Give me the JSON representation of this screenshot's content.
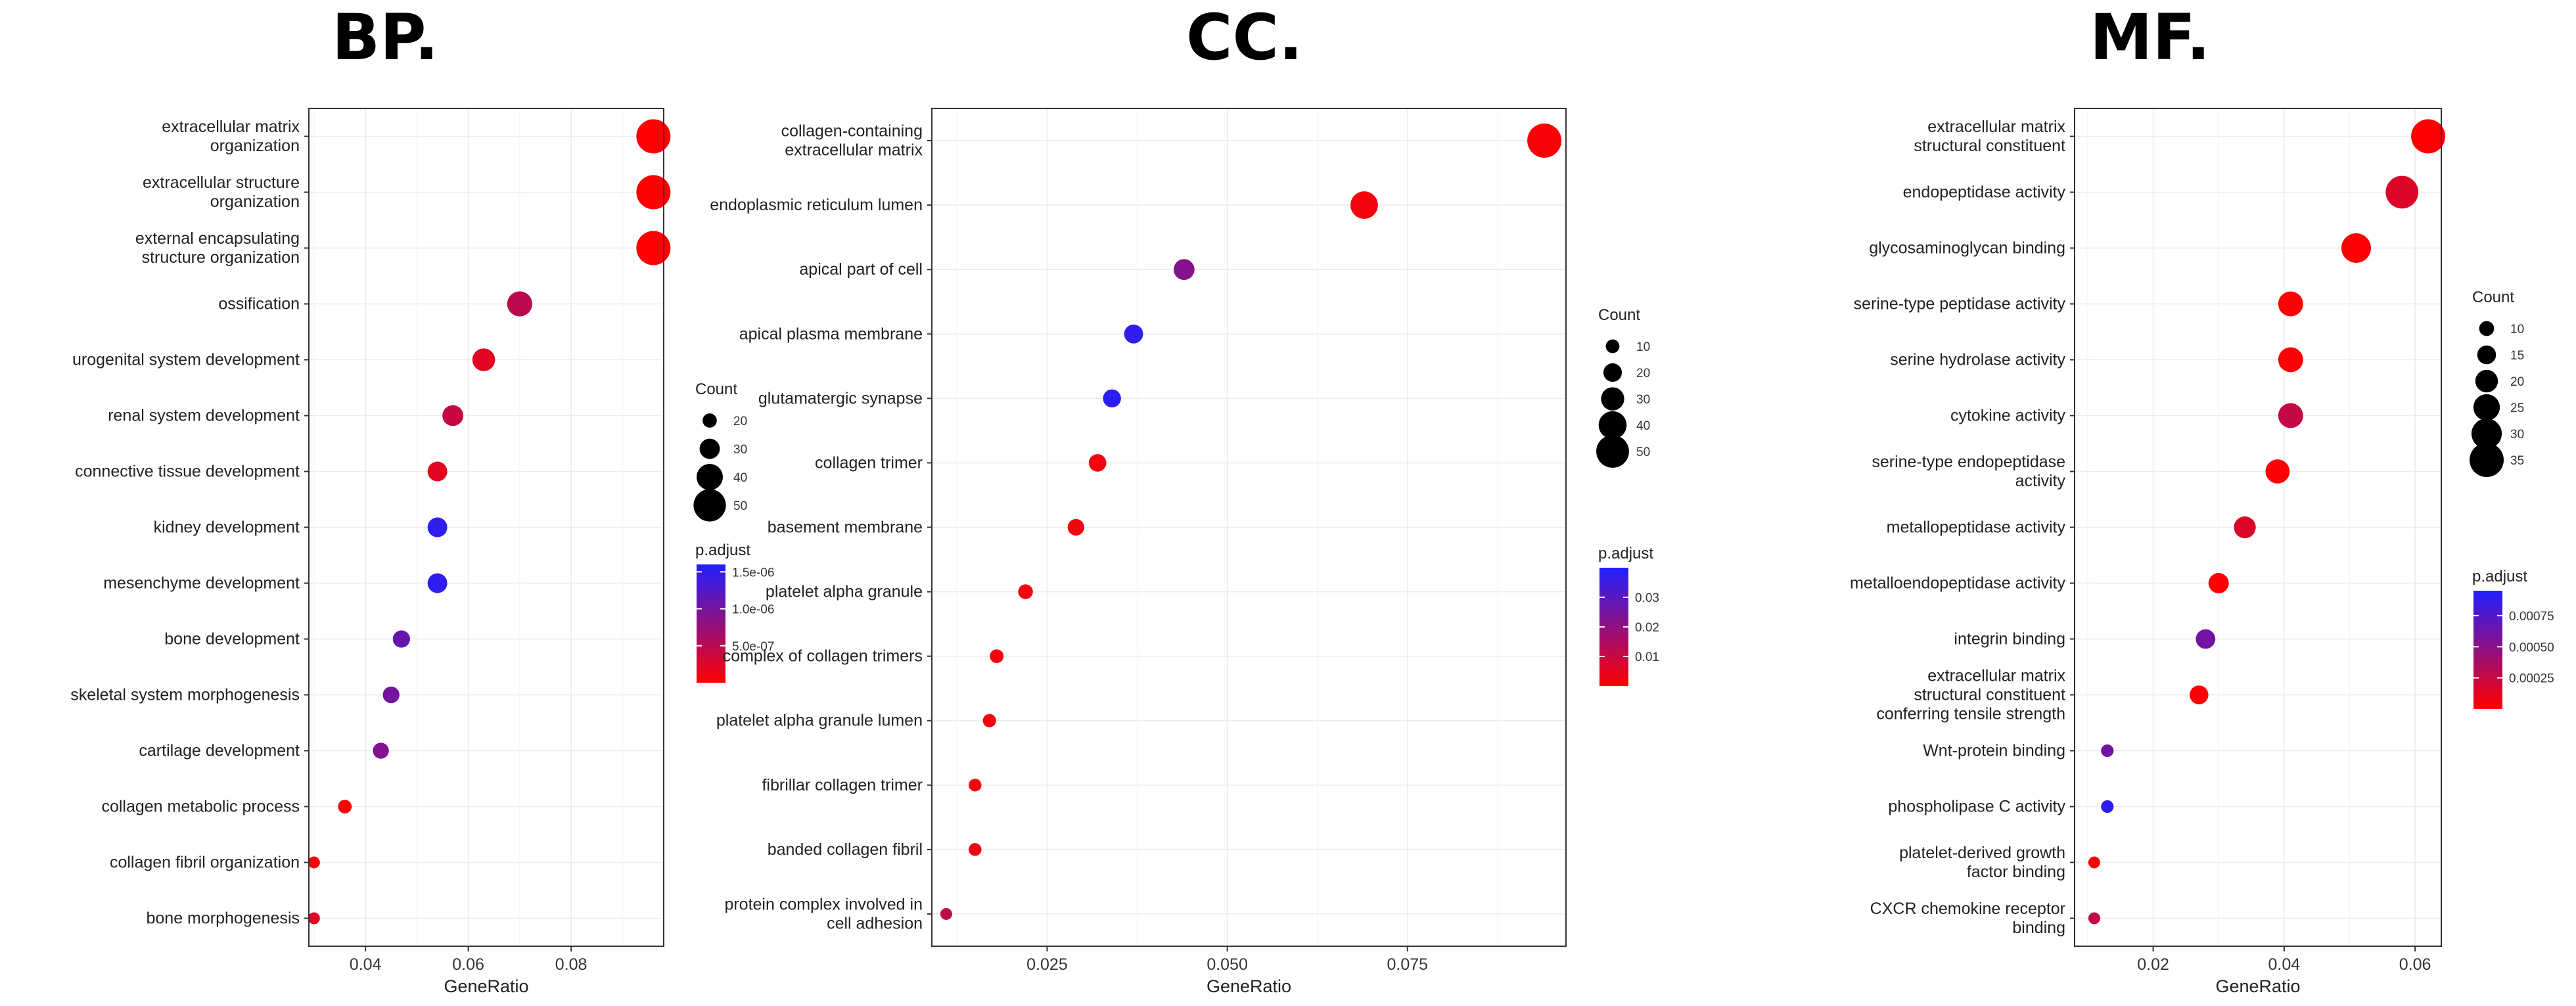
{
  "figure": {
    "panels": [
      "BP.",
      "CC.",
      "MF."
    ]
  },
  "chart_data": [
    {
      "type": "scatter",
      "title": "BP.",
      "xlabel": "GeneRatio",
      "ylabel": "",
      "xlim": [
        0.029,
        0.098
      ],
      "xticks": [
        0.04,
        0.06,
        0.08
      ],
      "xtick_labels": [
        "0.04",
        "0.06",
        "0.08"
      ],
      "grid": true,
      "legend_position": "right",
      "categories": [
        "extracellular matrix\norganization",
        "extracellular structure\norganization",
        "external encapsulating\nstructure organization",
        "ossification",
        "urogenital system development",
        "renal system development",
        "connective tissue development",
        "kidney development",
        "mesenchyme development",
        "bone development",
        "skeletal system morphogenesis",
        "cartilage development",
        "collagen metabolic process",
        "collagen fibril organization",
        "bone morphogenesis"
      ],
      "x": [
        0.096,
        0.096,
        0.096,
        0.07,
        0.063,
        0.057,
        0.054,
        0.054,
        0.054,
        0.047,
        0.045,
        0.043,
        0.036,
        0.03,
        0.03
      ],
      "count": [
        53,
        53,
        53,
        38,
        34,
        31,
        29,
        29,
        29,
        25,
        24,
        23,
        19,
        16,
        16
      ],
      "p_adjust": [
        1e-09,
        1e-09,
        1e-09,
        5e-07,
        2e-07,
        4e-07,
        2e-07,
        1.5e-06,
        1.5e-06,
        1.1e-06,
        1e-06,
        9e-07,
        1e-08,
        1e-08,
        2e-07
      ],
      "size_legend": {
        "title": "Count",
        "values": [
          20,
          30,
          40,
          50
        ],
        "labels": [
          "20",
          "30",
          "40",
          "50"
        ]
      },
      "color_legend": {
        "title": "p.adjust",
        "min": 0,
        "max": 1.6e-06,
        "ticks": [
          5e-07,
          1e-06,
          1.5e-06
        ],
        "tick_labels": [
          "5.0e-07",
          "1.0e-06",
          "1.5e-06"
        ],
        "low_color": "#ff0000",
        "high_color": "#2020ff"
      }
    },
    {
      "type": "scatter",
      "title": "CC.",
      "xlabel": "GeneRatio",
      "ylabel": "",
      "xlim": [
        0.009,
        0.097
      ],
      "xticks": [
        0.025,
        0.05,
        0.075
      ],
      "xtick_labels": [
        "0.025",
        "0.050",
        "0.075"
      ],
      "grid": true,
      "legend_position": "right",
      "categories": [
        "collagen-containing\nextracellular matrix",
        "endoplasmic reticulum lumen",
        "apical part of cell",
        "apical plasma membrane",
        "glutamatergic synapse",
        "collagen trimer",
        "basement membrane",
        "platelet alpha granule",
        "complex of collagen trimers",
        "platelet alpha granule lumen",
        "fibrillar collagen trimer",
        "banded collagen fibril",
        "protein complex involved in\ncell adhesion"
      ],
      "x": [
        0.094,
        0.069,
        0.044,
        0.037,
        0.034,
        0.032,
        0.029,
        0.022,
        0.018,
        0.017,
        0.015,
        0.015,
        0.011
      ],
      "count": [
        53,
        39,
        25,
        21,
        19,
        18,
        16,
        12,
        10,
        9,
        8,
        8,
        6
      ],
      "p_adjust": [
        0.001,
        0.002,
        0.022,
        0.037,
        0.038,
        0.002,
        0.002,
        0.002,
        0.002,
        0.002,
        0.002,
        0.003,
        0.012
      ],
      "size_legend": {
        "title": "Count",
        "values": [
          10,
          20,
          30,
          40,
          50
        ],
        "labels": [
          "10",
          "20",
          "30",
          "40",
          "50"
        ]
      },
      "color_legend": {
        "title": "p.adjust",
        "min": 0,
        "max": 0.04,
        "ticks": [
          0.01,
          0.02,
          0.03
        ],
        "tick_labels": [
          "0.01",
          "0.02",
          "0.03"
        ],
        "low_color": "#ff0000",
        "high_color": "#2020ff"
      }
    },
    {
      "type": "scatter",
      "title": "MF.",
      "xlabel": "GeneRatio",
      "ylabel": "",
      "xlim": [
        0.008,
        0.064
      ],
      "xticks": [
        0.02,
        0.04,
        0.06
      ],
      "xtick_labels": [
        "0.02",
        "0.04",
        "0.06"
      ],
      "grid": true,
      "legend_position": "right",
      "categories": [
        "extracellular matrix\nstructural constituent",
        "endopeptidase activity",
        "glycosaminoglycan binding",
        "serine-type peptidase activity",
        "serine hydrolase activity",
        "cytokine activity",
        "serine-type endopeptidase\nactivity",
        "metallopeptidase activity",
        "metalloendopeptidase activity",
        "integrin binding",
        "extracellular matrix\nstructural constituent\nconferring tensile strength",
        "Wnt-protein binding",
        "phospholipase C activity",
        "platelet-derived growth\nfactor binding",
        "CXCR chemokine receptor\nbinding"
      ],
      "x": [
        0.062,
        0.058,
        0.051,
        0.041,
        0.041,
        0.041,
        0.039,
        0.034,
        0.03,
        0.028,
        0.027,
        0.013,
        0.013,
        0.011,
        0.011
      ],
      "count": [
        35,
        33,
        29,
        23,
        23,
        23,
        22,
        19,
        17,
        16,
        15,
        7,
        7,
        6,
        6
      ],
      "p_adjust": [
        1e-06,
        0.00015,
        1e-05,
        1e-05,
        1e-05,
        0.00025,
        1e-05,
        0.00015,
        1e-05,
        0.0006,
        1e-05,
        0.0006,
        0.0009,
        1e-05,
        0.00025
      ],
      "size_legend": {
        "title": "Count",
        "values": [
          10,
          15,
          20,
          25,
          30,
          35
        ],
        "labels": [
          "10",
          "15",
          "20",
          "25",
          "30",
          "35"
        ]
      },
      "color_legend": {
        "title": "p.adjust",
        "min": 0,
        "max": 0.00095,
        "ticks": [
          0.00025,
          0.0005,
          0.00075
        ],
        "tick_labels": [
          "0.00025",
          "0.00050",
          "0.00075"
        ],
        "low_color": "#ff0000",
        "high_color": "#2020ff"
      }
    }
  ]
}
